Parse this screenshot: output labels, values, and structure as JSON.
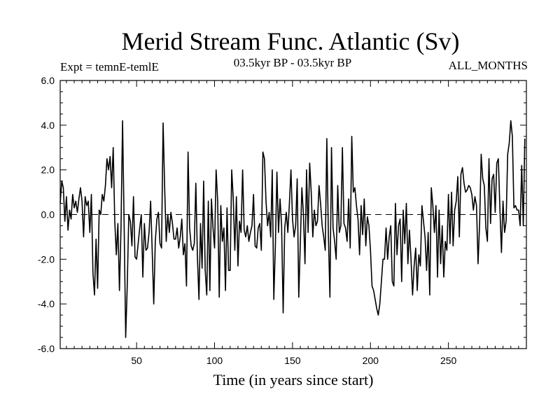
{
  "chart_data": {
    "type": "line",
    "title": "Merid Stream Func. Atlantic (Sv)",
    "subtitle": "03.5kyr BP - 03.5kyr BP",
    "expt_label": "Expt = temnE-temlE",
    "period_label": "ALL_MONTHS",
    "xlabel": "Time (in years since start)",
    "ylabel": "",
    "xlim": [
      1,
      300
    ],
    "ylim": [
      -6,
      6
    ],
    "xticks": [
      50,
      100,
      150,
      200,
      250
    ],
    "xtick_labels": [
      "50",
      "100",
      "150",
      "200",
      "250"
    ],
    "yticks": [
      -6,
      -4,
      -2,
      0,
      2,
      4,
      6
    ],
    "ytick_labels": [
      "-6.0",
      "-4.0",
      "-2.0",
      "0.0",
      "2.0",
      "4.0",
      "6.0"
    ],
    "reference_line": {
      "y": 0,
      "style": "dashed"
    },
    "series": [
      {
        "name": "Merid Stream Func. Atlantic",
        "x_start": 1,
        "x_step": 1,
        "values": [
          0.5,
          1.5,
          1.2,
          -0.3,
          0.8,
          -0.7,
          0.2,
          -0.2,
          0.9,
          0.3,
          0.6,
          0.1,
          0.7,
          1.2,
          0.6,
          -1.0,
          0.8,
          0.4,
          0.6,
          -0.8,
          0.9,
          -2.6,
          -3.6,
          -1.1,
          -3.3,
          0.2,
          0.0,
          0.9,
          0.6,
          1.3,
          2.5,
          2.0,
          2.6,
          1.2,
          3.0,
          -0.3,
          -1.8,
          -0.4,
          -3.4,
          -0.6,
          4.2,
          -0.4,
          -5.5,
          -3.2,
          0.0,
          -0.3,
          -1.4,
          0.8,
          -1.9,
          -2.0,
          -1.3,
          -0.6,
          0.0,
          -2.8,
          -0.4,
          -1.6,
          -1.5,
          -0.8,
          0.6,
          -1.6,
          -4.0,
          -1.2,
          -0.2,
          0.1,
          -1.3,
          -1.5,
          4.1,
          1.2,
          -1.2,
          0.0,
          -0.8,
          0.1,
          -0.4,
          -1.1,
          -1.1,
          -0.6,
          -1.5,
          -1.0,
          -0.2,
          -1.8,
          -1.3,
          -3.2,
          2.8,
          -0.6,
          -1.4,
          -1.6,
          -1.3,
          1.4,
          -1.9,
          -3.8,
          -0.4,
          -2.4,
          1.5,
          -2.5,
          -3.6,
          0.6,
          -3.4,
          0.7,
          -0.6,
          -1.5,
          2.0,
          0.6,
          -3.7,
          0.4,
          -1.2,
          -0.6,
          -3.4,
          0.3,
          -2.5,
          -2.5,
          2.0,
          0.7,
          -1.6,
          0.8,
          -2.3,
          -0.3,
          -0.8,
          2.0,
          -0.7,
          -1.0,
          -0.5,
          -1.2,
          -0.8,
          -0.5,
          0.9,
          -1.4,
          -1.5,
          -0.6,
          -0.4,
          -1.6,
          2.8,
          2.5,
          0.6,
          -0.5,
          0.1,
          -1.0,
          2.0,
          -3.8,
          -1.4,
          1.9,
          -0.8,
          0.7,
          -0.5,
          -4.4,
          -0.6,
          0.1,
          -0.8,
          0.5,
          2.0,
          -0.2,
          -1.0,
          -0.5,
          1.6,
          -3.7,
          -1.3,
          1.2,
          0.0,
          -2.2,
          2.0,
          -0.8,
          2.3,
          1.0,
          -1.0,
          0.2,
          -0.5,
          -0.3,
          1.3,
          0.5,
          -0.5,
          -1.0,
          -1.6,
          3.4,
          -0.9,
          -3.7,
          3.0,
          -0.6,
          -1.2,
          -2.0,
          1.3,
          -0.8,
          -0.5,
          3.0,
          -0.4,
          -0.6,
          -1.2,
          0.7,
          -1.5,
          3.5,
          1.0,
          1.2,
          0.4,
          -0.2,
          -1.8,
          0.4,
          -0.9,
          0.7,
          -1.4,
          -0.1,
          -0.5,
          -1.6,
          -3.2,
          -3.4,
          -3.8,
          -4.2,
          -4.5,
          -4.0,
          -3.0,
          -2.0,
          -2.0,
          -0.6,
          -2.0,
          -1.0,
          -0.5,
          -3.0,
          -3.2,
          0.5,
          -1.8,
          -0.5,
          -0.2,
          -3.0,
          0.2,
          -1.3,
          0.5,
          -2.2,
          -0.7,
          -2.0,
          -3.6,
          -2.3,
          -1.5,
          -3.4,
          -1.8,
          -2.3,
          0.4,
          -0.3,
          -1.0,
          -2.5,
          -0.8,
          -3.6,
          1.2,
          0.4,
          -0.8,
          0.4,
          -2.8,
          0.2,
          -2.2,
          -0.5,
          -2.8,
          -1.2,
          -1.6,
          0.9,
          -1.3,
          1.0,
          -1.4,
          0.2,
          0.6,
          1.7,
          -1.0,
          1.8,
          2.1,
          1.4,
          1.0,
          1.1,
          1.3,
          1.2,
          0.9,
          0.2,
          0.8,
          0.4,
          -2.2,
          -0.4,
          2.7,
          1.6,
          1.3,
          -0.6,
          -1.2,
          2.5,
          -0.4,
          1.6,
          1.8,
          0.1,
          2.3,
          2.5,
          0.3,
          -1.7,
          0.6,
          -0.8,
          -0.3,
          2.7,
          3.2,
          4.2,
          3.5,
          0.3,
          0.4,
          0.2,
          0.2,
          -0.5,
          2.2,
          -0.5,
          3.4
        ]
      }
    ],
    "colors": {
      "line": "#000000",
      "axis": "#000000",
      "background": "#ffffff"
    }
  }
}
